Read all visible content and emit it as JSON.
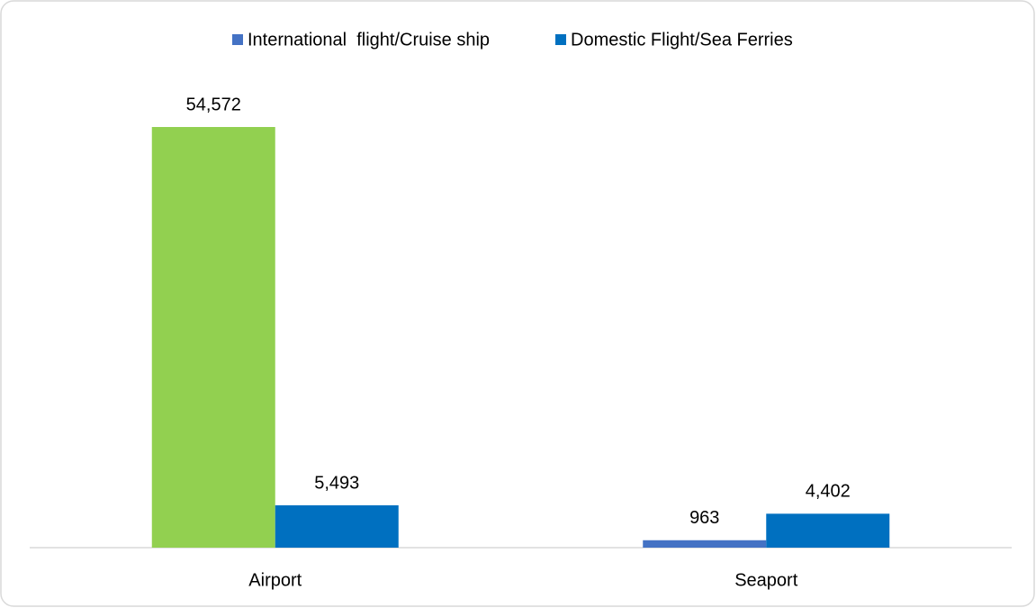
{
  "chart_data": {
    "type": "bar",
    "categories": [
      "Airport",
      "Seaport"
    ],
    "series": [
      {
        "name": "International  flight/Cruise ship",
        "color": "#4472c4",
        "colors": [
          "#92d050",
          "#4472c4"
        ],
        "values": [
          54572,
          963
        ],
        "value_labels": [
          "54,572",
          "963"
        ]
      },
      {
        "name": "Domestic Flight/Sea Ferries",
        "color": "#0070c0",
        "values": [
          5493,
          4402
        ],
        "value_labels": [
          "5,493",
          "4,402"
        ]
      }
    ],
    "legend": "top"
  }
}
